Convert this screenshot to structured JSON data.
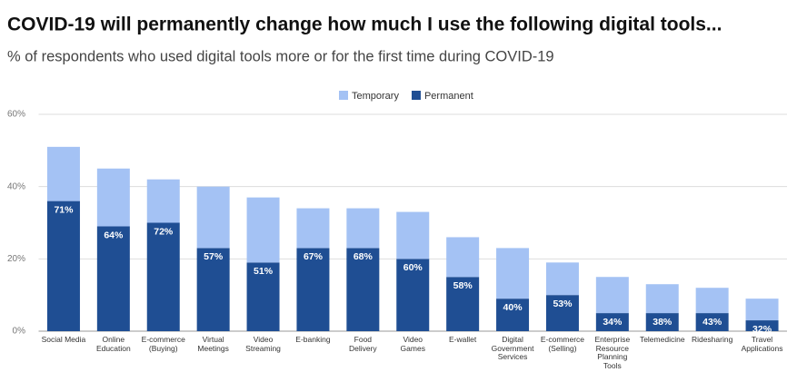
{
  "chart_data": {
    "type": "stacked-bar",
    "title": "COVID-19 will permanently change how much I use the following digital tools...",
    "subtitle": "% of respondents who used digital tools more or for the first time during COVID-19",
    "categories": [
      "Social Media",
      "Online\nEducation",
      "E-commerce\n(Buying)",
      "Virtual\nMeetings",
      "Video\nStreaming",
      "E-banking",
      "Food\nDelivery",
      "Video\nGames",
      "E-wallet",
      "Digital\nGovernment\nServices",
      "E-commerce\n(Selling)",
      "Enterprise\nResource\nPlanning\nTools",
      "Telemedicine",
      "Ridesharing",
      "Travel\nApplications"
    ],
    "series": [
      {
        "name": "Permanent",
        "color": "#1f4e93",
        "values": [
          36,
          29,
          30,
          23,
          19,
          23,
          23,
          20,
          15,
          9,
          10,
          5,
          5,
          5,
          3
        ],
        "value_labels": [
          "71%",
          "64%",
          "72%",
          "57%",
          "51%",
          "67%",
          "68%",
          "60%",
          "58%",
          "40%",
          "53%",
          "34%",
          "38%",
          "43%",
          "32%"
        ]
      },
      {
        "name": "Temporary",
        "color": "#a4c2f4",
        "values": [
          15,
          16,
          12,
          17,
          18,
          11,
          11,
          13,
          11,
          14,
          9,
          10,
          8,
          7,
          6
        ]
      }
    ],
    "legend": "top",
    "ylim": [
      0,
      60
    ],
    "yticks": [
      {
        "value": 0,
        "label": "0%"
      },
      {
        "value": 20,
        "label": "20%"
      },
      {
        "value": 40,
        "label": "40%"
      },
      {
        "value": 60,
        "label": "60%"
      }
    ],
    "grid": true
  }
}
